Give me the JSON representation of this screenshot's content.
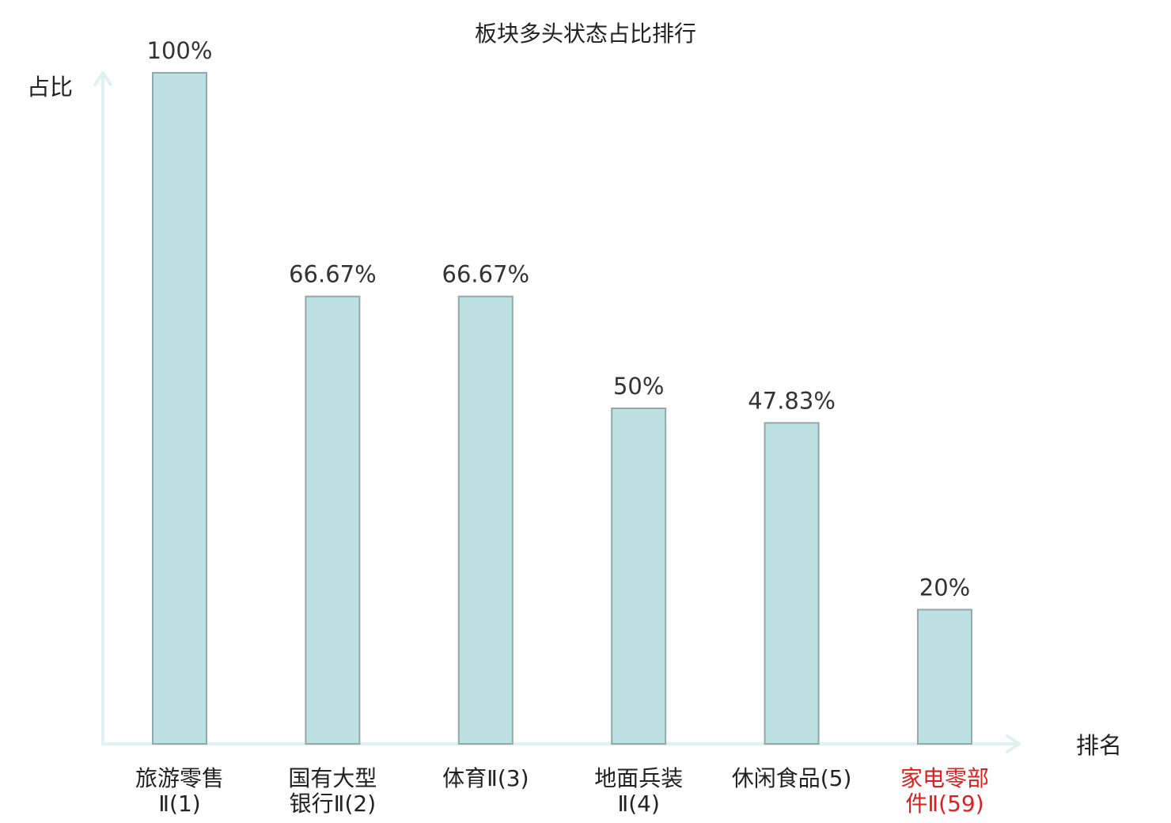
{
  "chart_data": {
    "type": "bar",
    "title": "板块多头状态占比排行",
    "ylabel": "占比",
    "xlabel": "排名",
    "ylim": [
      0,
      100
    ],
    "grid": false,
    "legend": "none",
    "categories": [
      [
        "旅游零售",
        "Ⅱ(1)"
      ],
      [
        "国有大型",
        "银行Ⅱ(2)"
      ],
      [
        "体育Ⅱ(3)"
      ],
      [
        "地面兵装",
        "Ⅱ(4)"
      ],
      [
        "休闲食品(5)"
      ],
      [
        "家电零部",
        "件Ⅱ(59)"
      ]
    ],
    "values": [
      100,
      66.67,
      66.67,
      50,
      47.83,
      20
    ],
    "value_labels": [
      "100%",
      "66.67%",
      "66.67%",
      "50%",
      "47.83%",
      "20%"
    ],
    "highlight_index": 5,
    "colors": {
      "bar_fill": "#bde0e3",
      "bar_stroke": "#8fa9ac",
      "axis": "#dff2ef",
      "text": "#222222",
      "highlight_text": "#e01e1e"
    }
  }
}
